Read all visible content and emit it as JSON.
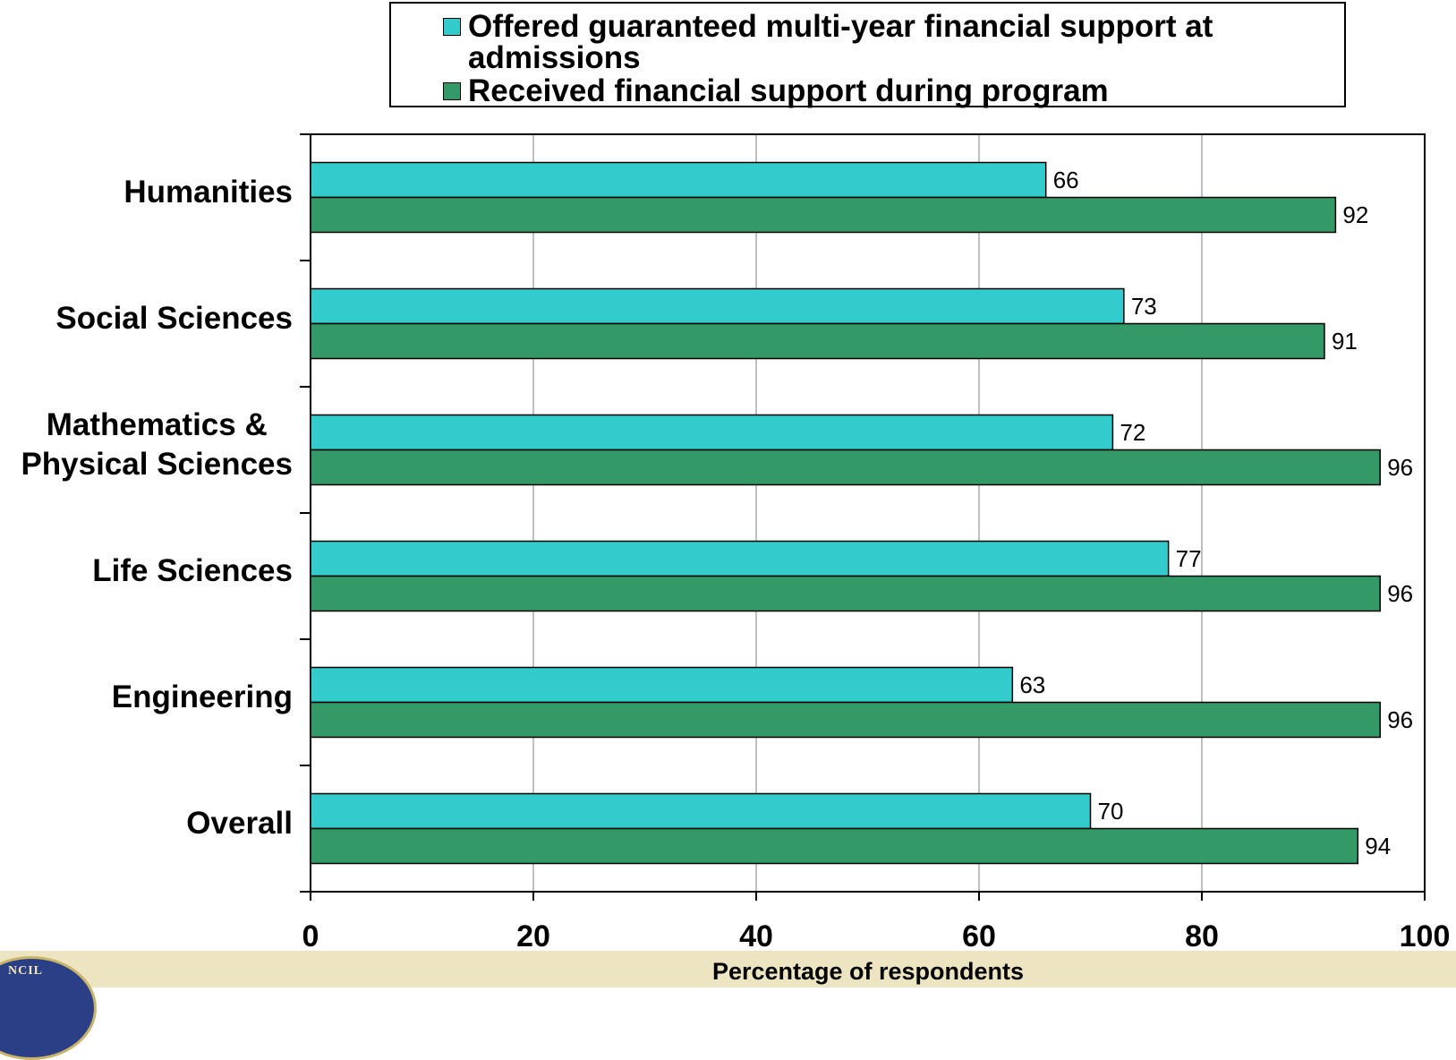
{
  "chart_data": {
    "type": "bar",
    "orientation": "horizontal",
    "categories": [
      "Humanities",
      "Social Sciences",
      "Mathematics & Physical Sciences",
      "Life Sciences",
      "Engineering",
      "Overall"
    ],
    "category_lines": [
      [
        "Humanities"
      ],
      [
        "Social Sciences"
      ],
      [
        "Mathematics &",
        "Physical Sciences"
      ],
      [
        "Life Sciences"
      ],
      [
        "Engineering"
      ],
      [
        "Overall"
      ]
    ],
    "series": [
      {
        "name": "Offered guaranteed multi-year financial support at admissions",
        "color": "#33cccc",
        "values": [
          66,
          73,
          72,
          77,
          63,
          70
        ]
      },
      {
        "name": "Received financial support during program",
        "color": "#339966",
        "values": [
          92,
          91,
          96,
          96,
          96,
          94
        ]
      }
    ],
    "xlabel": "Percentage of respondents",
    "xlim": [
      0,
      100
    ],
    "xticks": [
      "0",
      "20",
      "40",
      "60",
      "80",
      "100"
    ],
    "grid": "vertical",
    "legend_position": "top",
    "data_labels": true
  },
  "legend": {
    "items": [
      {
        "label_line1": "Offered guaranteed multi-year financial support at",
        "label_line2": "admissions"
      },
      {
        "label_line1": "Received financial support during program",
        "label_line2": ""
      }
    ]
  },
  "footer": {
    "seal_text": "NCIL",
    "band_color": "#ede5c1"
  }
}
